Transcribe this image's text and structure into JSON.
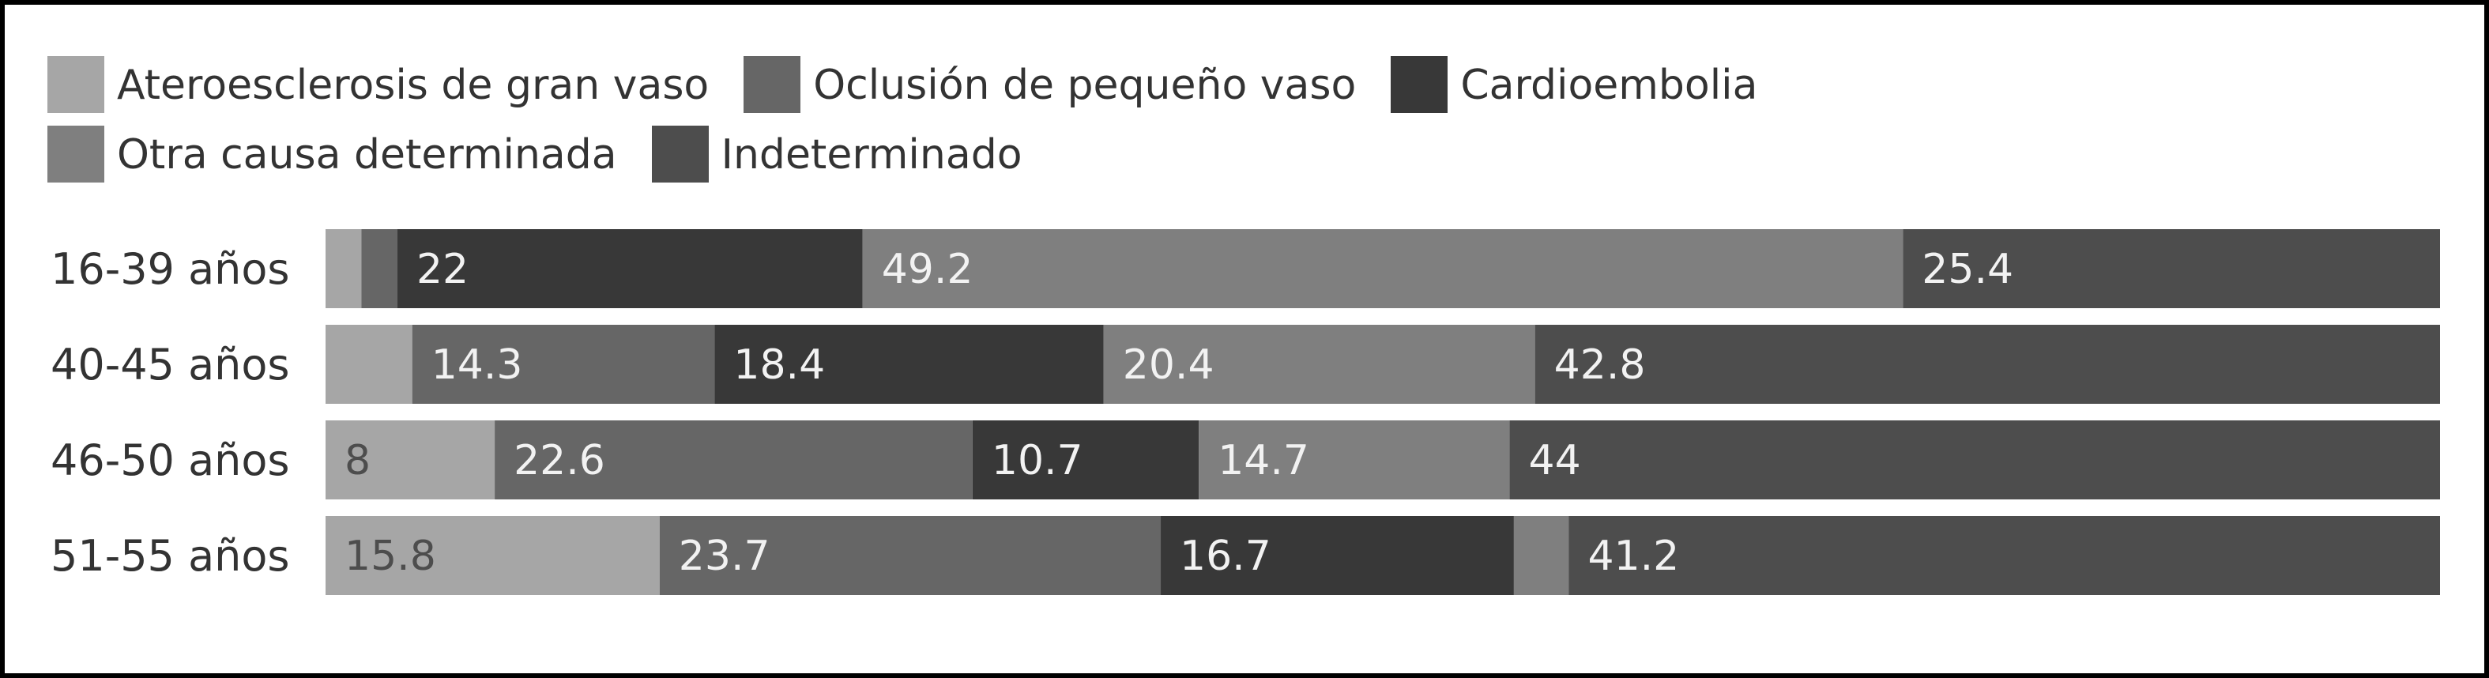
{
  "chart_data": {
    "type": "bar",
    "orientation": "horizontal",
    "stacked": "percent",
    "legend_position": "top",
    "grid": false,
    "xlim": [
      0,
      100
    ],
    "title": "",
    "xlabel": "",
    "ylabel": "",
    "categories": [
      "16-39 años",
      "40-45 años",
      "46-50 años",
      "51-55 años"
    ],
    "series": [
      {
        "name": "Ateroesclerosis de gran vaso",
        "color": "#a6a6a6",
        "values": [
          1.7,
          4.1,
          8,
          15.8
        ]
      },
      {
        "name": "Oclusión de pequeño vaso",
        "color": "#666666",
        "values": [
          1.7,
          14.3,
          22.6,
          23.7
        ]
      },
      {
        "name": "Cardioembolia",
        "color": "#383838",
        "values": [
          22,
          18.4,
          10.7,
          16.7
        ]
      },
      {
        "name": "Otra causa determinada",
        "color": "#7f7f7f",
        "values": [
          49.2,
          20.4,
          14.7,
          2.6
        ]
      },
      {
        "name": "Indeterminado",
        "color": "#4d4d4d",
        "values": [
          25.4,
          42.8,
          44,
          41.2
        ]
      }
    ],
    "data_labels": [
      [
        "",
        "",
        "22",
        "49.2",
        "25.4"
      ],
      [
        "",
        "14.3",
        "18.4",
        "20.4",
        "42.8"
      ],
      [
        "8",
        "22.6",
        "10.7",
        "14.7",
        "44"
      ],
      [
        "15.8",
        "23.7",
        "16.7",
        "",
        "41.2"
      ]
    ]
  }
}
